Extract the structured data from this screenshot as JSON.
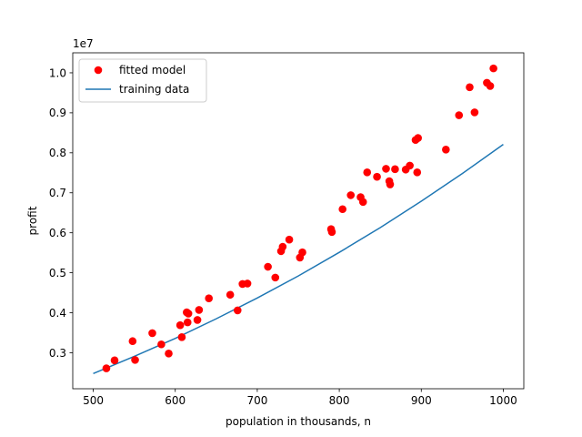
{
  "chart_data": {
    "type": "scatter",
    "xlabel": "population in thousands, n",
    "ylabel": "profit",
    "xlim": [
      475,
      1025
    ],
    "ylim": [
      2100000,
      10500000
    ],
    "x_ticks": [
      500,
      600,
      700,
      800,
      900,
      1000
    ],
    "x_tick_labels": [
      "500",
      "600",
      "700",
      "800",
      "900",
      "1000"
    ],
    "y_ticks": [
      3000000,
      4000000,
      5000000,
      6000000,
      7000000,
      8000000,
      9000000,
      10000000
    ],
    "y_tick_labels": [
      "0.3",
      "0.4",
      "0.5",
      "0.6",
      "0.7",
      "0.8",
      "0.9",
      "1.0"
    ],
    "y_offset_label": "1e7",
    "grid": false,
    "legend_position": "top-left",
    "legend": [
      {
        "label": "fitted model",
        "marker": "circle",
        "color": "#ff0000"
      },
      {
        "label": "training data",
        "marker": "line",
        "color": "#1f77b4"
      }
    ],
    "series": [
      {
        "name": "fitted model",
        "kind": "scatter",
        "color": "#ff0000",
        "points": [
          [
            516,
            2610000
          ],
          [
            526,
            2810000
          ],
          [
            548,
            3290000
          ],
          [
            551,
            2820000
          ],
          [
            572,
            3490000
          ],
          [
            583,
            3210000
          ],
          [
            592,
            2980000
          ],
          [
            606,
            3690000
          ],
          [
            608,
            3390000
          ],
          [
            614,
            4010000
          ],
          [
            615,
            3760000
          ],
          [
            616,
            3980000
          ],
          [
            627,
            3820000
          ],
          [
            629,
            4070000
          ],
          [
            641,
            4360000
          ],
          [
            667,
            4450000
          ],
          [
            676,
            4060000
          ],
          [
            682,
            4720000
          ],
          [
            688,
            4730000
          ],
          [
            713,
            5150000
          ],
          [
            722,
            4880000
          ],
          [
            729,
            5540000
          ],
          [
            731,
            5650000
          ],
          [
            739,
            5830000
          ],
          [
            752,
            5380000
          ],
          [
            755,
            5510000
          ],
          [
            790,
            6090000
          ],
          [
            791,
            6020000
          ],
          [
            804,
            6590000
          ],
          [
            814,
            6940000
          ],
          [
            826,
            6890000
          ],
          [
            829,
            6770000
          ],
          [
            834,
            7510000
          ],
          [
            846,
            7400000
          ],
          [
            857,
            7600000
          ],
          [
            861,
            7290000
          ],
          [
            862,
            7210000
          ],
          [
            868,
            7590000
          ],
          [
            881,
            7580000
          ],
          [
            886,
            7680000
          ],
          [
            893,
            8320000
          ],
          [
            896,
            8370000
          ],
          [
            895,
            7510000
          ],
          [
            930,
            8080000
          ],
          [
            946,
            8940000
          ],
          [
            959,
            9640000
          ],
          [
            965,
            9010000
          ],
          [
            980,
            9750000
          ],
          [
            984,
            9670000
          ],
          [
            988,
            10110000
          ]
        ]
      },
      {
        "name": "training data",
        "kind": "line",
        "color": "#1f77b4",
        "points": [
          [
            500,
            2480000
          ],
          [
            550,
            2910000
          ],
          [
            600,
            3360000
          ],
          [
            650,
            3850000
          ],
          [
            700,
            4370000
          ],
          [
            750,
            4920000
          ],
          [
            800,
            5510000
          ],
          [
            850,
            6130000
          ],
          [
            900,
            6790000
          ],
          [
            950,
            7480000
          ],
          [
            1000,
            8210000
          ]
        ]
      }
    ]
  }
}
